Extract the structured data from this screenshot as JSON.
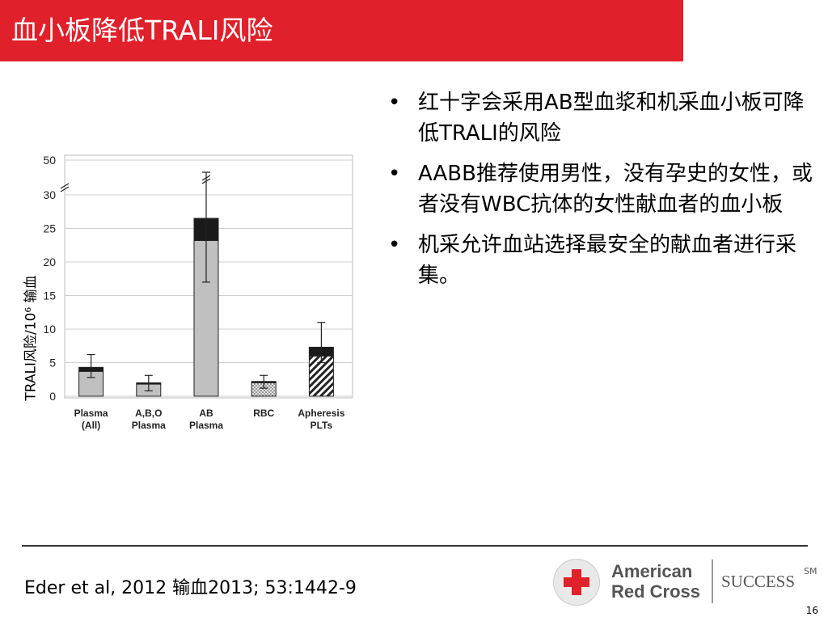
{
  "title": "血小板降低TRALI风险",
  "bullets": [
    "红十字会采用AB型血浆和机采血小板可降低TRALI的风险",
    "AABB推荐使用男性，没有孕史的女性，或者没有WBC抗体的女性献血者的血小板",
    "机采允许血站选择最安全的献血者进行采集。"
  ],
  "bullet_symbol": "•",
  "citation": "Eder et al, 2012 输血2013; 53:1442-9",
  "logo": {
    "line1": "American",
    "line2": "Red Cross",
    "tagline": "SUCCESS",
    "mark": "SM",
    "colors": {
      "cross": "#e0202a",
      "text": "#555555"
    }
  },
  "page_number": "16",
  "colors": {
    "title_bar": "#e0202a",
    "bar_fill": "#c0c0c0",
    "bar_cap": "#1a1a1a"
  },
  "chart_data": {
    "type": "bar",
    "ylabel": "TRALI风险/10⁶ 输血",
    "y_axis_break": true,
    "grid": true,
    "yticks": [
      "0",
      "5",
      "10",
      "15",
      "20",
      "25",
      "30",
      "50"
    ],
    "categories": [
      {
        "line1": "Plasma",
        "line2": "(All)"
      },
      {
        "line1": "A,B,O",
        "line2": "Plasma"
      },
      {
        "line1": "AB",
        "line2": "Plasma"
      },
      {
        "line1": "RBC",
        "line2": ""
      },
      {
        "line1": "Apheresis",
        "line2": "PLTs"
      }
    ],
    "values": [
      4.3,
      2.0,
      26.5,
      2.2,
      7.3
    ],
    "lower_segment": [
      3.7,
      1.8,
      23.2,
      2.0,
      6.0
    ],
    "error_high": [
      6.2,
      3.1,
      31.0,
      3.1,
      11.0
    ],
    "error_low": [
      2.8,
      0.8,
      17.0,
      1.2,
      5.0
    ],
    "error_high_broken": [
      false,
      false,
      true,
      false,
      false
    ],
    "patterns": [
      "solid",
      "solid",
      "solid",
      "dotted",
      "hatched"
    ]
  }
}
